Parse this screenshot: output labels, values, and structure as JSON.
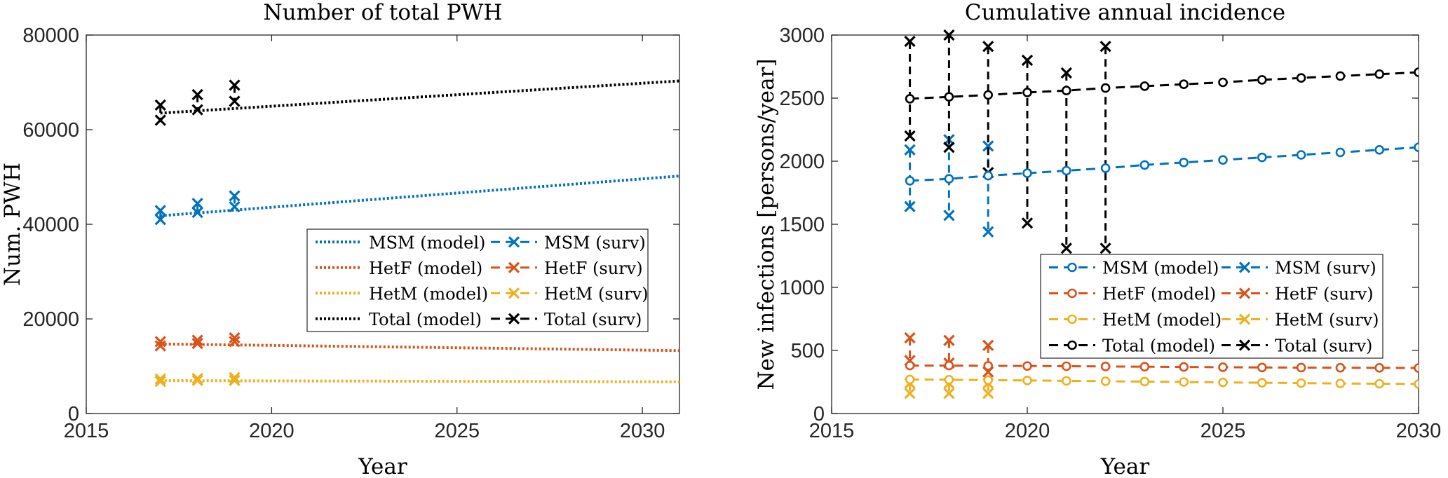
{
  "chart_data": [
    {
      "type": "line",
      "title": "Number of total PWH",
      "xlabel": "Year",
      "ylabel": "Num. PWH",
      "xlim": [
        2015,
        2031
      ],
      "ylim": [
        0,
        80000
      ],
      "xticks": [
        2015,
        2020,
        2025,
        2030
      ],
      "yticks": [
        0,
        20000,
        40000,
        60000,
        80000
      ],
      "grid": false,
      "legend_position": "center-right",
      "legend_columns": 2,
      "model_series": [
        {
          "name": "MSM (model)",
          "color": "#0072BD",
          "style": "dotted",
          "x": [
            2017,
            2031
          ],
          "y": [
            41800,
            50200
          ]
        },
        {
          "name": "HetF (model)",
          "color": "#D95319",
          "style": "dotted",
          "x": [
            2017,
            2031
          ],
          "y": [
            14700,
            13300
          ]
        },
        {
          "name": "HetM (model)",
          "color": "#EDB120",
          "style": "dotted",
          "x": [
            2017,
            2031
          ],
          "y": [
            6950,
            6700
          ]
        },
        {
          "name": "Total (model)",
          "color": "#000000",
          "style": "dotted",
          "x": [
            2017,
            2031
          ],
          "y": [
            63500,
            70300
          ]
        }
      ],
      "surv_series": [
        {
          "name": "MSM (surv)",
          "color": "#0072BD",
          "x": [
            2017,
            2018,
            2019
          ],
          "low": [
            41000,
            42500,
            43700
          ],
          "high": [
            42900,
            44400,
            46000
          ]
        },
        {
          "name": "HetF (surv)",
          "color": "#D95319",
          "x": [
            2017,
            2018,
            2019
          ],
          "low": [
            14300,
            14800,
            15200
          ],
          "high": [
            15200,
            15500,
            16000
          ]
        },
        {
          "name": "HetM (surv)",
          "color": "#EDB120",
          "x": [
            2017,
            2018,
            2019
          ],
          "low": [
            6800,
            7000,
            7000
          ],
          "high": [
            7300,
            7400,
            7600
          ]
        },
        {
          "name": "Total (surv)",
          "color": "#000000",
          "x": [
            2017,
            2018,
            2019
          ],
          "low": [
            62000,
            64200,
            66000
          ],
          "high": [
            65200,
            67400,
            69400
          ]
        }
      ]
    },
    {
      "type": "line",
      "title": "Cumulative annual incidence",
      "xlabel": "Year",
      "ylabel": "New infections [persons/year]",
      "xlim": [
        2015,
        2030
      ],
      "ylim": [
        0,
        3000
      ],
      "xticks": [
        2015,
        2020,
        2025,
        2030
      ],
      "yticks": [
        0,
        500,
        1000,
        1500,
        2000,
        2500,
        3000
      ],
      "grid": false,
      "legend_position": "bottom-right",
      "legend_columns": 2,
      "model_series": [
        {
          "name": "MSM (model)",
          "color": "#0072BD",
          "style": "dashed-circle",
          "x": [
            2017,
            2018,
            2019,
            2020,
            2021,
            2022,
            2023,
            2024,
            2025,
            2026,
            2027,
            2028,
            2029,
            2030
          ],
          "y": [
            1845,
            1860,
            1885,
            1905,
            1925,
            1945,
            1970,
            1990,
            2010,
            2030,
            2050,
            2070,
            2090,
            2110
          ]
        },
        {
          "name": "HetF (model)",
          "color": "#D95319",
          "style": "dashed-circle",
          "x": [
            2017,
            2018,
            2019,
            2020,
            2021,
            2022,
            2023,
            2024,
            2025,
            2026,
            2027,
            2028,
            2029,
            2030
          ],
          "y": [
            380,
            380,
            378,
            377,
            375,
            373,
            371,
            369,
            367,
            365,
            364,
            363,
            362,
            361
          ]
        },
        {
          "name": "HetM (model)",
          "color": "#EDB120",
          "style": "dashed-circle",
          "x": [
            2017,
            2018,
            2019,
            2020,
            2021,
            2022,
            2023,
            2024,
            2025,
            2026,
            2027,
            2028,
            2029,
            2030
          ],
          "y": [
            270,
            268,
            265,
            262,
            259,
            256,
            253,
            250,
            247,
            244,
            241,
            238,
            236,
            234
          ]
        },
        {
          "name": "Total (model)",
          "color": "#000000",
          "style": "dashed-circle",
          "x": [
            2017,
            2018,
            2019,
            2020,
            2021,
            2022,
            2023,
            2024,
            2025,
            2026,
            2027,
            2028,
            2029,
            2030
          ],
          "y": [
            2495,
            2510,
            2525,
            2545,
            2560,
            2580,
            2595,
            2610,
            2625,
            2645,
            2660,
            2675,
            2690,
            2705
          ]
        }
      ],
      "surv_series": [
        {
          "name": "MSM (surv)",
          "color": "#0072BD",
          "x": [
            2017,
            2018,
            2019
          ],
          "low": [
            1640,
            1570,
            1440
          ],
          "high": [
            2090,
            2170,
            2120
          ]
        },
        {
          "name": "HetF (surv)",
          "color": "#D95319",
          "x": [
            2017,
            2018,
            2019
          ],
          "low": [
            420,
            400,
            330
          ],
          "high": [
            600,
            580,
            540
          ]
        },
        {
          "name": "HetM (surv)",
          "color": "#EDB120",
          "x": [
            2017,
            2018,
            2019
          ],
          "low": [
            160,
            160,
            160
          ],
          "high": [
            240,
            240,
            240
          ]
        },
        {
          "name": "Total (surv)",
          "color": "#000000",
          "x": [
            2017,
            2018,
            2019,
            2020,
            2021,
            2022
          ],
          "low": [
            2200,
            2110,
            1910,
            1510,
            1310,
            1310
          ],
          "high": [
            2950,
            3000,
            2910,
            2800,
            2700,
            2910
          ]
        }
      ]
    }
  ]
}
